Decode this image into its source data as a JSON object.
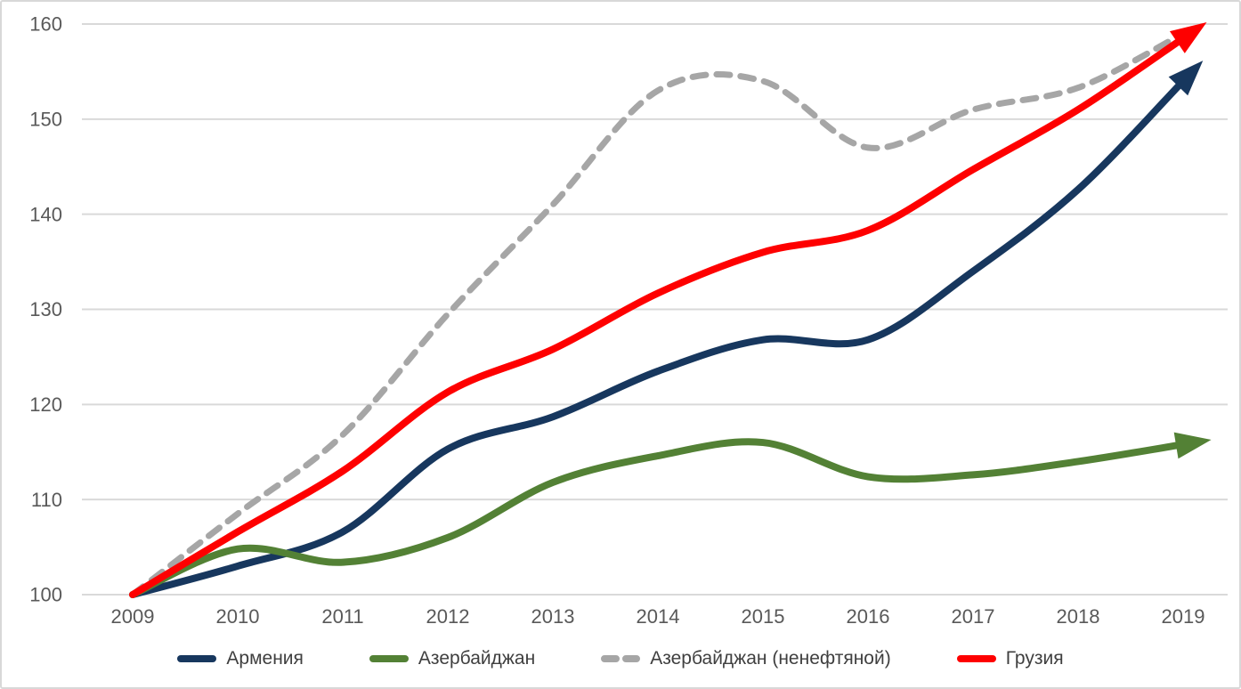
{
  "chart_data": {
    "type": "line",
    "title": "",
    "x": [
      2009,
      2010,
      2011,
      2012,
      2013,
      2014,
      2015,
      2016,
      2017,
      2018,
      2019
    ],
    "x_tick_labels": [
      "2009",
      "2010",
      "2011",
      "2012",
      "2013",
      "2014",
      "2015",
      "2016",
      "2017",
      "2018",
      "2019"
    ],
    "yticks": [
      100,
      110,
      120,
      130,
      140,
      150,
      160
    ],
    "y_tick_labels": [
      "100",
      "110",
      "120",
      "130",
      "140",
      "150",
      "160"
    ],
    "ylim": [
      100,
      160
    ],
    "grid": "horizontal",
    "legend_position": "bottom",
    "series": [
      {
        "name": "Армения",
        "id": "armenia",
        "color": "#17375e",
        "dash": null,
        "arrow_end": true,
        "values": [
          100,
          103,
          106.6,
          115.3,
          118.7,
          123.5,
          126.8,
          126.8,
          134,
          142.6,
          154
        ]
      },
      {
        "name": "Азербайджан",
        "id": "azerbaijan",
        "color": "#538135",
        "dash": null,
        "arrow_end": true,
        "values": [
          100,
          104.8,
          103.4,
          106,
          111.8,
          114.6,
          116,
          112.4,
          112.6,
          114,
          115.8
        ]
      },
      {
        "name": "Азербайджан (ненефтяной)",
        "id": "azerbaijan-non-oil",
        "color": "#a6a6a6",
        "dash": "15 12",
        "arrow_end": false,
        "values": [
          100,
          108.5,
          116.8,
          129.5,
          141,
          153,
          154,
          147,
          151,
          153.3,
          159
        ]
      },
      {
        "name": "Грузия",
        "id": "georgia",
        "color": "#fe0000",
        "dash": null,
        "arrow_end": true,
        "values": [
          100,
          106.6,
          113,
          121.3,
          125.8,
          131.7,
          136,
          138.3,
          144.7,
          151,
          158.5
        ]
      }
    ],
    "colors": {
      "grid": "#d9d9d9",
      "axis_text": "#595959",
      "legend_text": "#3f3f3f"
    }
  }
}
